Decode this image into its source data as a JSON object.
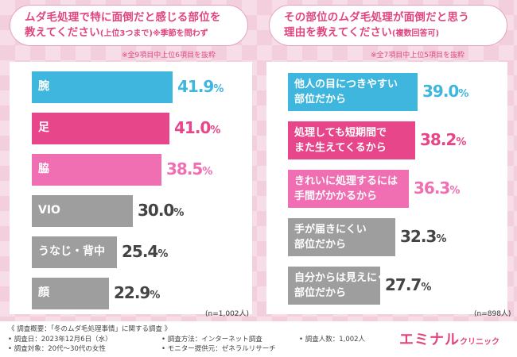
{
  "left_title": {
    "line1": "ムダ毛処理で特に面倒だと感じる部位を",
    "line2": "教えてください",
    "line2_sub": "(上位3つまで)",
    "line2_tail": "※季節を問わず"
  },
  "right_title": {
    "line1": "その部位のムダ毛処理が面倒だと思う",
    "line2": "理由を教えてください",
    "line2_sub": "(複数回答可)"
  },
  "left_note": "※全9項目中上位6項目を抜粋",
  "right_note": "※全7項目中上位5項目を抜粋",
  "left_n": "(n=1,002人)",
  "right_n": "(n=898人)",
  "percent_sign": "%",
  "chart_data": [
    {
      "type": "bar",
      "orientation": "horizontal",
      "categories": [
        "腕",
        "足",
        "脇",
        "VIO",
        "うなじ・背中",
        "顔"
      ],
      "values": [
        41.9,
        41.0,
        38.5,
        30.0,
        25.4,
        22.9
      ],
      "value_labels": [
        "41.9",
        "41.0",
        "38.5",
        "30.0",
        "25.4",
        "22.9"
      ],
      "colors": [
        "#3fb6dd",
        "#e8468a",
        "#f06fb3",
        "#9e9e9e",
        "#9e9e9e",
        "#9e9e9e"
      ],
      "unit": "%"
    },
    {
      "type": "bar",
      "orientation": "horizontal",
      "categories": [
        [
          "他人の目につきやすい",
          "部位だから"
        ],
        [
          "処理しても短期間で",
          "また生えてくるから"
        ],
        [
          "きれいに処理するには",
          "手間がかかるから"
        ],
        [
          "手が届きにくい",
          "部位だから"
        ],
        [
          "自分からは見えにくい",
          "部位だから"
        ]
      ],
      "values": [
        39.0,
        38.2,
        36.3,
        32.3,
        27.7
      ],
      "value_labels": [
        "39.0",
        "38.2",
        "36.3",
        "32.3",
        "27.7"
      ],
      "colors": [
        "#3fb6dd",
        "#e8468a",
        "#f06fb3",
        "#9e9e9e",
        "#9e9e9e"
      ],
      "unit": "%"
    }
  ],
  "footer": {
    "title": "《 調査概要：「冬のムダ毛処理事情」に関する調査 》",
    "date": "• 調査日：2023年12月6日（水）",
    "target": "• 調査対象：20代〜30代の女性",
    "method": "• 調査方法：インターネット調査",
    "provider": "• モニター提供元：ゼネラルリサーチ",
    "count": "• 調査人数：1,002人",
    "brand_main": "エミナル",
    "brand_sub": "クリニック"
  }
}
